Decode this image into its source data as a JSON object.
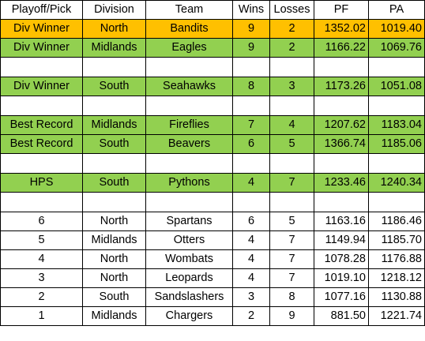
{
  "headers": [
    "Playoff/Pick",
    "Division",
    "Team",
    "Wins",
    "Losses",
    "PF",
    "PA"
  ],
  "rows": [
    {
      "type": "orange",
      "cells": [
        "Div Winner",
        "North",
        "Bandits",
        "9",
        "2",
        "1352.02",
        "1019.40"
      ]
    },
    {
      "type": "green",
      "cells": [
        "Div Winner",
        "Midlands",
        "Eagles",
        "9",
        "2",
        "1166.22",
        "1069.76"
      ]
    },
    {
      "type": "blank",
      "cells": [
        "",
        "",
        "",
        "",
        "",
        "",
        ""
      ]
    },
    {
      "type": "green",
      "cells": [
        "Div Winner",
        "South",
        "Seahawks",
        "8",
        "3",
        "1173.26",
        "1051.08"
      ]
    },
    {
      "type": "blank",
      "cells": [
        "",
        "",
        "",
        "",
        "",
        "",
        ""
      ]
    },
    {
      "type": "green",
      "cells": [
        "Best Record",
        "Midlands",
        "Fireflies",
        "7",
        "4",
        "1207.62",
        "1183.04"
      ]
    },
    {
      "type": "green",
      "cells": [
        "Best Record",
        "South",
        "Beavers",
        "6",
        "5",
        "1366.74",
        "1185.06"
      ]
    },
    {
      "type": "blank",
      "cells": [
        "",
        "",
        "",
        "",
        "",
        "",
        ""
      ]
    },
    {
      "type": "green",
      "cells": [
        "HPS",
        "South",
        "Pythons",
        "4",
        "7",
        "1233.46",
        "1240.34"
      ]
    },
    {
      "type": "blank",
      "cells": [
        "",
        "",
        "",
        "",
        "",
        "",
        ""
      ]
    },
    {
      "type": "white",
      "cells": [
        "6",
        "North",
        "Spartans",
        "6",
        "5",
        "1163.16",
        "1186.46"
      ]
    },
    {
      "type": "white",
      "cells": [
        "5",
        "Midlands",
        "Otters",
        "4",
        "7",
        "1149.94",
        "1185.70"
      ]
    },
    {
      "type": "white",
      "cells": [
        "4",
        "North",
        "Wombats",
        "4",
        "7",
        "1078.28",
        "1176.88"
      ]
    },
    {
      "type": "white",
      "cells": [
        "3",
        "North",
        "Leopards",
        "4",
        "7",
        "1019.10",
        "1218.12"
      ]
    },
    {
      "type": "white",
      "cells": [
        "2",
        "South",
        "Sandslashers",
        "3",
        "8",
        "1077.16",
        "1130.88"
      ]
    },
    {
      "type": "white",
      "cells": [
        "1",
        "Midlands",
        "Chargers",
        "2",
        "9",
        "881.50",
        "1221.74"
      ]
    }
  ],
  "colors": {
    "orange": "#ffc000",
    "green": "#92d050",
    "white": "#ffffff"
  }
}
